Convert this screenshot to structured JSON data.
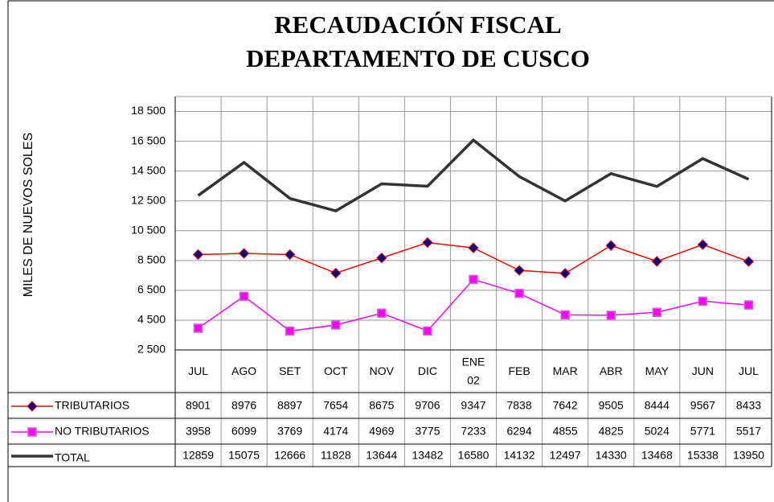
{
  "chart_data": {
    "type": "line",
    "title": [
      "RECAUDACIÓN  FISCAL",
      "DEPARTAMENTO DE CUSCO"
    ],
    "ylabel": "MILES DE NUEVOS SOLES",
    "categories": [
      "JUL",
      "AGO",
      "SET",
      "OCT",
      "NOV",
      "DIC",
      "ENE 02",
      "FEB",
      "MAR",
      "ABR",
      "MAY",
      "JUN",
      "JUL"
    ],
    "series": [
      {
        "name": "TRIBUTARIOS",
        "color": "#ff0000",
        "marker": "diamond",
        "marker_color": "#000080",
        "values": [
          8901,
          8976,
          8897,
          7654,
          8675,
          9706,
          9347,
          7838,
          7642,
          9505,
          8444,
          9567,
          8433
        ]
      },
      {
        "name": "NO TRIBUTARIOS",
        "color": "#ff00ff",
        "marker": "square",
        "marker_color": "#ff00ff",
        "values": [
          3958,
          6099,
          3769,
          4174,
          4969,
          3775,
          7233,
          6294,
          4855,
          4825,
          5024,
          5771,
          5517
        ]
      },
      {
        "name": "TOTAL",
        "color": "#333333",
        "marker": "none",
        "values": [
          12859,
          15075,
          12666,
          11828,
          13644,
          13482,
          16580,
          14132,
          12497,
          14330,
          13468,
          15338,
          13950
        ]
      }
    ],
    "ylim": [
      2500,
      19500
    ],
    "yticks": [
      {
        "value": 2500,
        "label": "2 500"
      },
      {
        "value": 4500,
        "label": "4 500"
      },
      {
        "value": 6500,
        "label": "6 500"
      },
      {
        "value": 8500,
        "label": "8 500"
      },
      {
        "value": 10500,
        "label": "10 500"
      },
      {
        "value": 12500,
        "label": "12 500"
      },
      {
        "value": 14500,
        "label": "14 500"
      },
      {
        "value": 16500,
        "label": "16 500"
      },
      {
        "value": 18500,
        "label": "18 500"
      }
    ],
    "grid": true
  }
}
